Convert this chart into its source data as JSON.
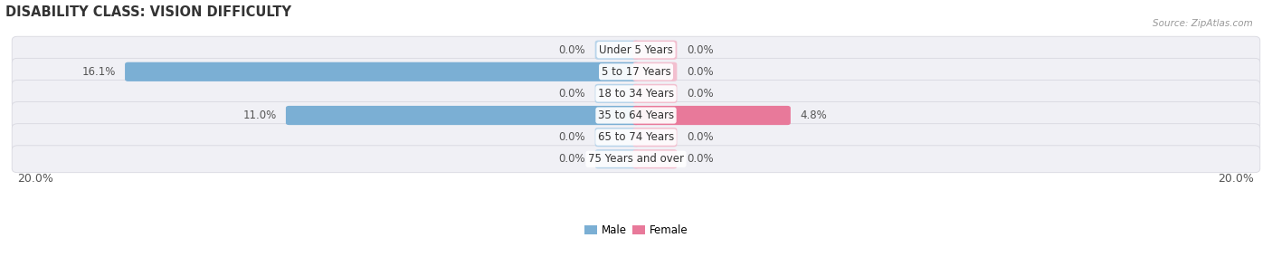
{
  "title": "DISABILITY CLASS: VISION DIFFICULTY",
  "source_text": "Source: ZipAtlas.com",
  "categories": [
    "Under 5 Years",
    "5 to 17 Years",
    "18 to 34 Years",
    "35 to 64 Years",
    "65 to 74 Years",
    "75 Years and over"
  ],
  "male_values": [
    0.0,
    16.1,
    0.0,
    11.0,
    0.0,
    0.0
  ],
  "female_values": [
    0.0,
    0.0,
    0.0,
    4.8,
    0.0,
    0.0
  ],
  "male_color": "#7bafd4",
  "female_color": "#e8799a",
  "male_color_light": "#b8d4ea",
  "female_color_light": "#f2bfcf",
  "row_bg_color": "#f0f0f5",
  "row_edge_color": "#d8d8e0",
  "max_val": 20.0,
  "title_fontsize": 10.5,
  "axis_fontsize": 9,
  "label_fontsize": 8.5,
  "category_fontsize": 8.5,
  "zero_stub": 1.2
}
